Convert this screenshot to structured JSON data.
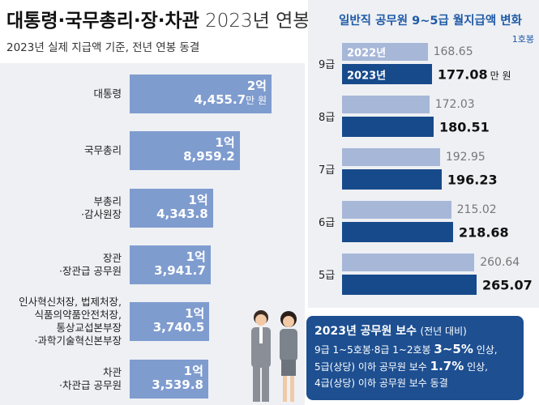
{
  "header": {
    "title_bold": "대통령·국무총리·장·차관",
    "title_light": "2023년 연봉",
    "subtitle": "2023년 실제 지급액 기준, 전년 연봉 동결"
  },
  "chart_data": [
    {
      "type": "hbar",
      "categories": [
        "대통령",
        "국무총리",
        "부총리\n·감사원장",
        "장관\n·장관급 공무원",
        "인사혁신처장, 법제처장,\n식품의약품안전처장,\n통상교섭본부장\n·과학기술혁신본부장",
        "차관\n·차관급 공무원"
      ],
      "values": [
        24455.7,
        18959.2,
        14343.8,
        13941.7,
        13740.5,
        13539.8
      ],
      "value_labels": [
        "2억\n4,455.7",
        "1억\n8,959.2",
        "1억\n4,343.8",
        "1억\n3,941.7",
        "1억\n3,740.5",
        "1억\n3,539.8"
      ],
      "value_unit": "만 원",
      "color": "#7f9ccf"
    },
    {
      "type": "grouped-hbar",
      "title": "일반직 공무원 9~5급 월지급액 변화",
      "subtitle": "1호봉",
      "categories": [
        "9급",
        "8급",
        "7급",
        "6급",
        "5급"
      ],
      "series": [
        {
          "name": "2022년",
          "color": "#a7b7d8",
          "values": [
            168.65,
            172.03,
            192.95,
            215.02,
            260.64
          ]
        },
        {
          "name": "2023년",
          "color": "#174a8b",
          "values": [
            177.08,
            180.51,
            196.23,
            218.68,
            265.07
          ]
        }
      ],
      "value_unit": "만 원"
    }
  ],
  "callout": {
    "title": "2023년 공무원 보수",
    "title_note": "(전년 대비)",
    "lines": [
      [
        "9급 1~5호봉·8급 1~2호봉 ",
        "3~5%",
        " 인상,"
      ],
      [
        "5급(상당) 이하 공무원 보수 ",
        "1.7%",
        " 인상,"
      ],
      [
        "4급(상당) 이하 공무원 보수 동결"
      ]
    ]
  }
}
